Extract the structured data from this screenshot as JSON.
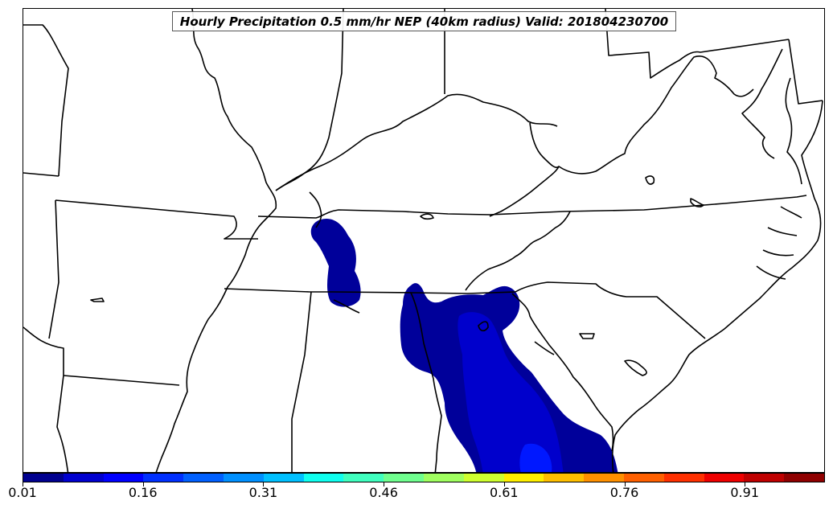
{
  "title": "Hourly Precipitation 0.5 mm/hr NEP (40km radius) Valid: 201804230700",
  "colorbar": {
    "colors": [
      "#00008f",
      "#0000cf",
      "#0000ff",
      "#0030ff",
      "#0060ff",
      "#0090ff",
      "#00c0ff",
      "#10ffef",
      "#40ffbf",
      "#70ff8f",
      "#a0ff60",
      "#cfff30",
      "#ffef00",
      "#ffbf00",
      "#ff9000",
      "#ff6000",
      "#ff3000",
      "#ef0000",
      "#bf0000",
      "#8f0000"
    ],
    "tick_labels": [
      "0.01",
      "0.16",
      "0.31",
      "0.46",
      "0.61",
      "0.76",
      "0.91"
    ]
  },
  "chart_data": {
    "type": "heatmap",
    "variable": "neighborhood exceedance probability of hourly precipitation >= 0.5 mm/hr",
    "value_range": [
      0.01,
      1.0
    ],
    "region": "Southeastern United States",
    "regions_with_probability": [
      {
        "area": "western Kentucky / Tennessee border",
        "level": 0.05
      },
      {
        "area": "eastern Alabama / western Georgia",
        "level": 0.05
      },
      {
        "area": "central and southern Georgia",
        "level": 0.12
      },
      {
        "area": "southern Georgia core",
        "level": 0.18
      }
    ]
  }
}
